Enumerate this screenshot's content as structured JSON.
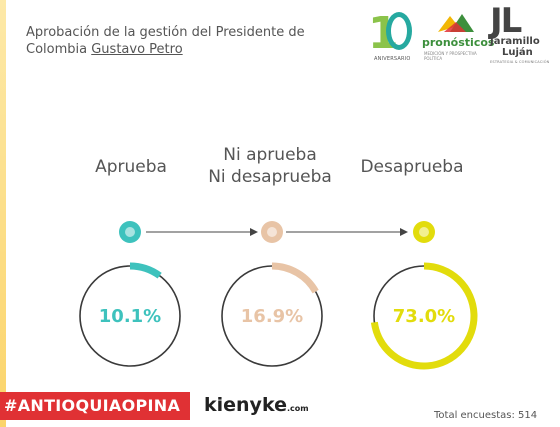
{
  "header": {
    "title_line1": "Aprobación de la gestión del Presidente de",
    "title_line2_prefix": "Colombia ",
    "title_name": "Gustavo Petro"
  },
  "logos": {
    "anniversary_text": "ANIVERSARIO",
    "pronosticos_word": "pronósticos",
    "pronosticos_sub": "MEDICIÓN Y PROSPECTIVA POLÍTICA",
    "jl_mark": "JL",
    "jl_name1": "Jaramillo",
    "jl_name2": "Luján",
    "jl_tag": "ESTRATEGIA & COMUNICACIÓN"
  },
  "chart_data": {
    "type": "pie",
    "categories": [
      "Aprueba",
      "Ni aprueba\nNi desaprueba",
      "Desaprueba"
    ],
    "category_lines": [
      [
        "Aprueba"
      ],
      [
        "Ni aprueba",
        "Ni desaprueba"
      ],
      [
        "Desaprueba"
      ]
    ],
    "values": [
      10.1,
      16.9,
      73.0
    ],
    "value_labels": [
      "10.1%",
      "16.9%",
      "73.0%"
    ],
    "colors": [
      "#3ec2bd",
      "#e8c4a6",
      "#e2dc0c"
    ],
    "unit": "%"
  },
  "footer": {
    "hashtag": "#ANTIOQUIAOPINA",
    "brand": "kienyke",
    "brand_suffix": ".com",
    "total_label": "Total encuestas: 514"
  }
}
